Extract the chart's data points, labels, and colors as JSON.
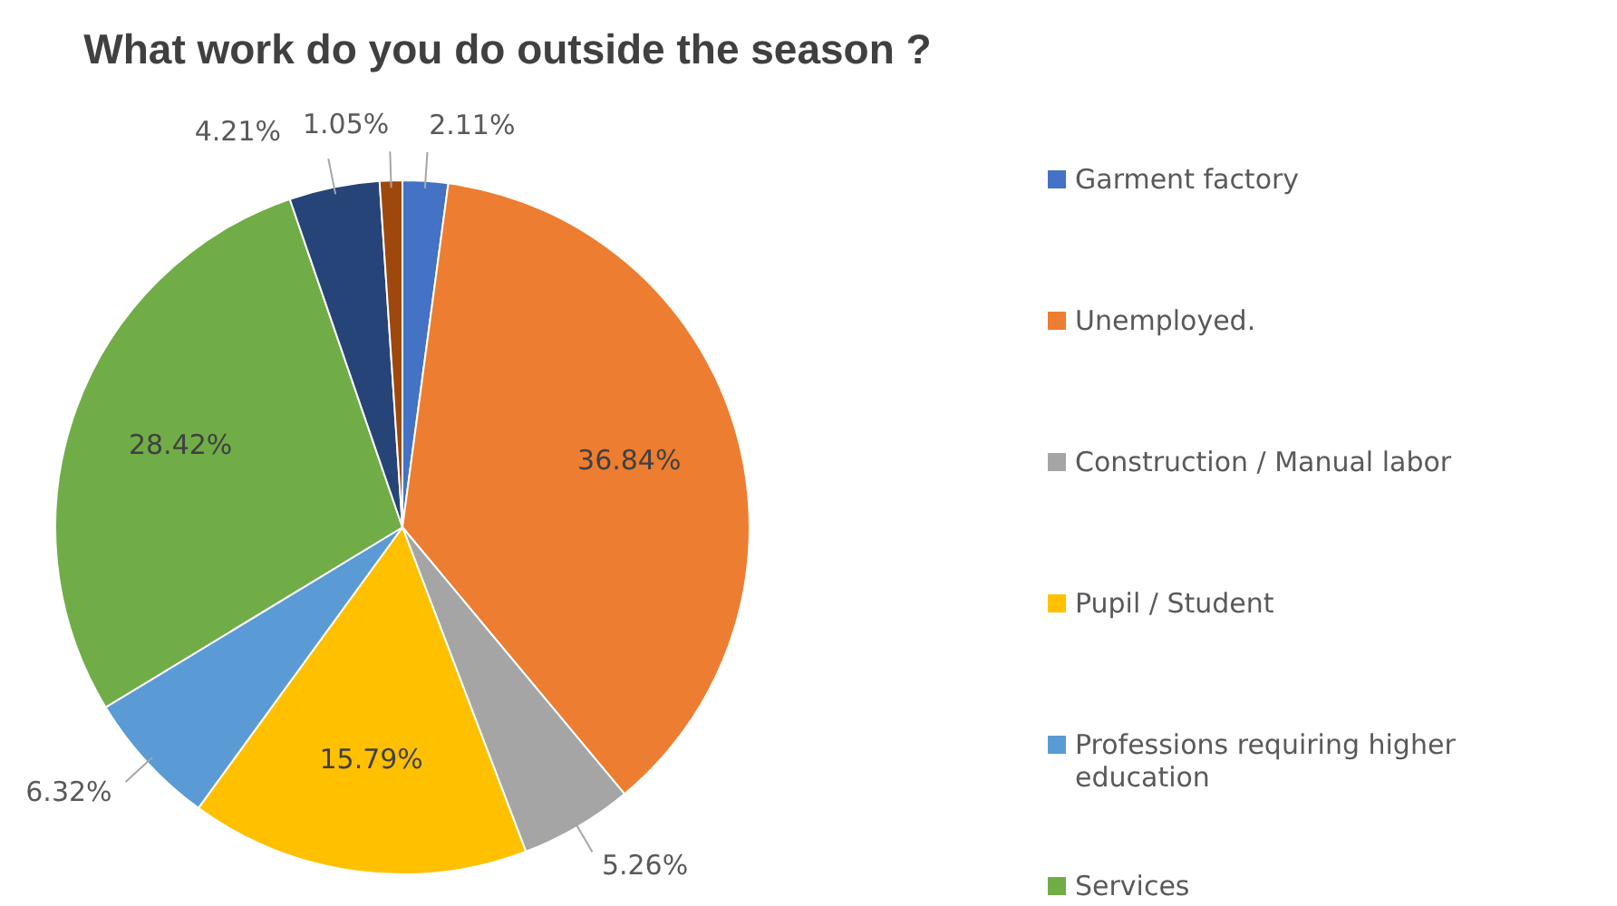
{
  "chart_data": {
    "type": "pie",
    "title": "What work do you do outside the season ?",
    "categories": [
      "Garment factory",
      "Unemployed.",
      "Construction / Manual labor",
      "Pupil / Student",
      "Professions requiring higher education",
      "Services",
      null,
      null
    ],
    "values": [
      2.11,
      36.84,
      5.26,
      15.79,
      6.32,
      28.42,
      4.21,
      1.05
    ],
    "colors": [
      "#4472c4",
      "#ed7d31",
      "#a5a5a5",
      "#ffc000",
      "#5b9bd5",
      "#70ad47",
      "#264478",
      "#9e480e"
    ],
    "value_labels": [
      "2.11%",
      "36.84%",
      "5.26%",
      "15.79%",
      "6.32%",
      "28.42%",
      "4.21%",
      "1.05%"
    ],
    "legend": "right"
  }
}
